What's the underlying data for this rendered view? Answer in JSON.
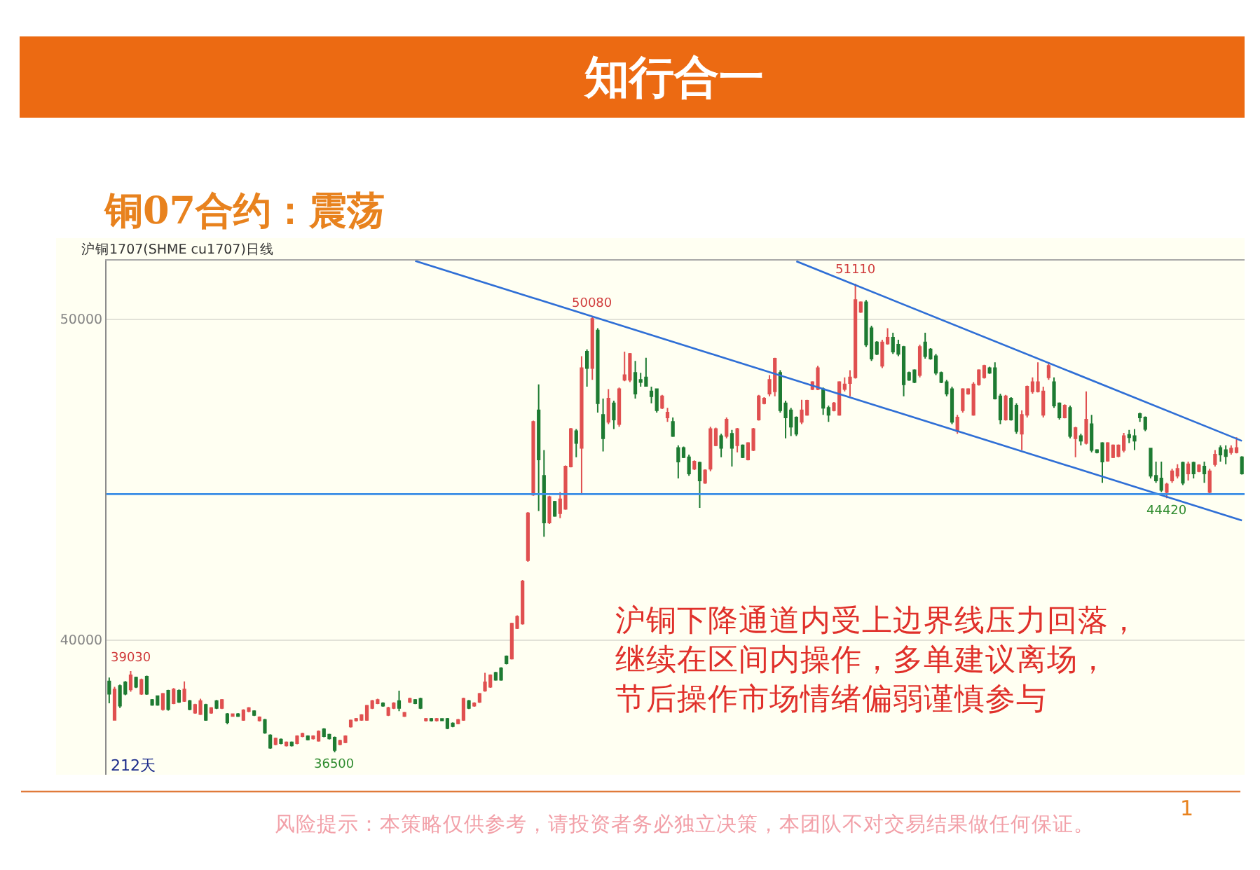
{
  "chart_data": {
    "type": "candlestick",
    "title": "铜07合约：震荡",
    "subtitle": "沪铜1707(SHME cu1707)日线",
    "categories": [
      null,
      null,
      null,
      null,
      null,
      null,
      null,
      null,
      null,
      null,
      null,
      null,
      null,
      null,
      null,
      null,
      null,
      null,
      null,
      null,
      null,
      null,
      null,
      null,
      null,
      null,
      null,
      null,
      null,
      null,
      null,
      null,
      null,
      null,
      null,
      null,
      null,
      null,
      null,
      null,
      null,
      null,
      null,
      null,
      null,
      null,
      null,
      null,
      null,
      null,
      null,
      null,
      null,
      null,
      null,
      null,
      null,
      null,
      null,
      null,
      null,
      null,
      null,
      null,
      null,
      null,
      null,
      null,
      null,
      null,
      null,
      null,
      null,
      null,
      null,
      null,
      null,
      null,
      null,
      null,
      null,
      null,
      null,
      null,
      null,
      null,
      null,
      null,
      null,
      null,
      null,
      null,
      null,
      null,
      null,
      null,
      null,
      null,
      null,
      null,
      null,
      null,
      null,
      null,
      null,
      null,
      null,
      null,
      null,
      null,
      null,
      null,
      null,
      null,
      null,
      null,
      null,
      null,
      null,
      null,
      null,
      null,
      null,
      null,
      null,
      null,
      null,
      null,
      null,
      null,
      null,
      null,
      null,
      null,
      null,
      null,
      null,
      null,
      null,
      null,
      null,
      null,
      null,
      null,
      null,
      null,
      null,
      null,
      null,
      null,
      null,
      null,
      null,
      null,
      null,
      null,
      null,
      null,
      null,
      null,
      null,
      null,
      null,
      null,
      null,
      null,
      null,
      null,
      null,
      null,
      null,
      null,
      null,
      null,
      null,
      null,
      null,
      null,
      null,
      null,
      null,
      null,
      null,
      null,
      null,
      null,
      null,
      null,
      null,
      null,
      null,
      null,
      null,
      null,
      null,
      null,
      null,
      null,
      null,
      null,
      null,
      null,
      null,
      null,
      null,
      null,
      null,
      null,
      null,
      null,
      null,
      null
    ],
    "ohlc": [
      [
        38710,
        38830,
        38030,
        38320
      ],
      [
        37510,
        38540,
        37500,
        38460
      ],
      [
        38570,
        38610,
        37880,
        37950
      ],
      [
        38680,
        38720,
        38280,
        38320
      ],
      [
        38460,
        39030,
        38390,
        38900
      ],
      [
        38830,
        38860,
        38500,
        38540
      ],
      [
        38320,
        38800,
        38290,
        38760
      ],
      [
        38860,
        38890,
        38290,
        38320
      ],
      [
        38130,
        38160,
        37950,
        37980
      ],
      [
        38250,
        38270,
        37950,
        37980
      ],
      [
        37840,
        38350,
        37800,
        38320
      ],
      [
        38420,
        38450,
        37800,
        37840
      ],
      [
        38030,
        38500,
        38000,
        38460
      ],
      [
        38420,
        38460,
        38040,
        38070
      ],
      [
        38100,
        38710,
        38070,
        38460
      ],
      [
        38100,
        38130,
        37810,
        37840
      ],
      [
        37730,
        38010,
        37700,
        37980
      ],
      [
        37690,
        38170,
        37660,
        38100
      ],
      [
        37980,
        38010,
        37480,
        37510
      ],
      [
        37730,
        37910,
        37700,
        37880
      ],
      [
        38100,
        38130,
        37850,
        37880
      ],
      [
        37880,
        38160,
        37850,
        38130
      ],
      [
        37690,
        37720,
        37370,
        37440
      ],
      [
        37630,
        37710,
        37610,
        37690
      ],
      [
        37690,
        37720,
        37600,
        37630
      ],
      [
        37510,
        37840,
        37480,
        37810
      ],
      [
        37780,
        37910,
        37750,
        37880
      ],
      [
        37780,
        37810,
        37630,
        37660
      ],
      [
        37490,
        37620,
        37460,
        37590
      ],
      [
        37510,
        37540,
        37080,
        37110
      ],
      [
        37030,
        37060,
        36610,
        36640
      ],
      [
        36750,
        36960,
        36720,
        36930
      ],
      [
        36900,
        36930,
        36750,
        36780
      ],
      [
        36710,
        36840,
        36680,
        36810
      ],
      [
        36810,
        36840,
        36680,
        36710
      ],
      [
        36780,
        37030,
        36750,
        37000
      ],
      [
        37000,
        37110,
        36970,
        37080
      ],
      [
        37000,
        37030,
        36870,
        36900
      ],
      [
        36930,
        37030,
        36900,
        37000
      ],
      [
        36860,
        37180,
        36830,
        37150
      ],
      [
        37220,
        37250,
        36970,
        37000
      ],
      [
        37050,
        37080,
        36900,
        36930
      ],
      [
        36960,
        36990,
        36500,
        36570
      ],
      [
        36750,
        36890,
        36720,
        36860
      ],
      [
        36810,
        37030,
        36780,
        37000
      ],
      [
        37300,
        37520,
        37270,
        37490
      ],
      [
        37490,
        37570,
        37460,
        37540
      ],
      [
        37510,
        37690,
        37480,
        37660
      ],
      [
        37510,
        37980,
        37480,
        37950
      ],
      [
        37880,
        38130,
        37850,
        38100
      ],
      [
        38030,
        38170,
        38000,
        38130
      ],
      [
        38030,
        38060,
        37920,
        37950
      ],
      [
        37660,
        37920,
        37630,
        37880
      ],
      [
        37880,
        38060,
        37850,
        38030
      ],
      [
        38100,
        38420,
        37780,
        37880
      ],
      [
        37630,
        37760,
        37600,
        37730
      ],
      [
        38070,
        38200,
        38040,
        38170
      ],
      [
        38130,
        38160,
        38000,
        38030
      ],
      [
        38170,
        38200,
        37850,
        37880
      ],
      [
        37490,
        37570,
        37460,
        37540
      ],
      [
        37540,
        37570,
        37460,
        37490
      ],
      [
        37490,
        37570,
        37460,
        37540
      ],
      [
        37540,
        37560,
        37470,
        37490
      ],
      [
        37540,
        37570,
        37220,
        37250
      ],
      [
        37400,
        37430,
        37280,
        37310
      ],
      [
        37400,
        37540,
        37370,
        37510
      ],
      [
        37510,
        38200,
        37480,
        38170
      ],
      [
        38100,
        38130,
        37850,
        37880
      ],
      [
        37950,
        38060,
        37920,
        38030
      ],
      [
        38070,
        38350,
        38040,
        38320
      ],
      [
        38420,
        38980,
        38390,
        38680
      ],
      [
        38540,
        38930,
        38510,
        38900
      ],
      [
        38980,
        39010,
        38730,
        38760
      ],
      [
        39120,
        39150,
        38730,
        38760
      ],
      [
        39490,
        39520,
        39240,
        39270
      ],
      [
        39420,
        40540,
        39390,
        40510
      ],
      [
        40370,
        40770,
        40340,
        40730
      ],
      [
        40510,
        41870,
        40480,
        41830
      ],
      [
        42490,
        43990,
        42440,
        43950
      ],
      [
        44530,
        46840,
        44500,
        46800
      ],
      [
        47160,
        47970,
        44020,
        45630
      ],
      [
        45120,
        45920,
        43220,
        43660
      ],
      [
        43660,
        44500,
        43620,
        44460
      ],
      [
        44310,
        44340,
        43840,
        43870
      ],
      [
        43950,
        44610,
        43800,
        44390
      ],
      [
        44090,
        45440,
        44060,
        45410
      ],
      [
        45410,
        46610,
        45380,
        46580
      ],
      [
        46510,
        46580,
        45700,
        46140
      ],
      [
        45990,
        48850,
        44530,
        48480
      ],
      [
        48990,
        49060,
        47900,
        48480
      ],
      [
        48480,
        50080,
        48110,
        50010
      ],
      [
        49650,
        49720,
        47090,
        47380
      ],
      [
        47020,
        47530,
        45880,
        46290
      ],
      [
        46800,
        47820,
        46730,
        47530
      ],
      [
        47380,
        47460,
        46580,
        46870
      ],
      [
        46730,
        47870,
        46650,
        47820
      ],
      [
        48110,
        48990,
        48070,
        48260
      ],
      [
        48110,
        48950,
        48040,
        48920
      ],
      [
        48330,
        48700,
        47530,
        47680
      ],
      [
        48110,
        48330,
        47900,
        48040
      ],
      [
        48190,
        48800,
        47900,
        47920
      ],
      [
        47750,
        47900,
        47380,
        47600
      ],
      [
        47820,
        47840,
        47090,
        47160
      ],
      [
        47240,
        47640,
        47200,
        47600
      ],
      [
        46940,
        47240,
        46800,
        47090
      ],
      [
        46800,
        46940,
        46330,
        46360
      ],
      [
        45990,
        46070,
        45040,
        45560
      ],
      [
        45990,
        46030,
        45670,
        45700
      ],
      [
        45700,
        45780,
        45120,
        45190
      ],
      [
        45340,
        45600,
        45300,
        45560
      ],
      [
        45530,
        45560,
        44120,
        44970
      ],
      [
        44900,
        45320,
        44870,
        45290
      ],
      [
        45340,
        46650,
        45260,
        46580
      ],
      [
        46070,
        46620,
        46040,
        46580
      ],
      [
        46360,
        46430,
        45700,
        45990
      ],
      [
        46360,
        46940,
        46290,
        46870
      ],
      [
        46430,
        46550,
        45410,
        45990
      ],
      [
        46070,
        46610,
        45850,
        46580
      ],
      [
        46070,
        46100,
        45670,
        45700
      ],
      [
        45630,
        46170,
        45600,
        46140
      ],
      [
        45920,
        46610,
        45890,
        46580
      ],
      [
        46870,
        47640,
        46840,
        47600
      ],
      [
        47380,
        47570,
        47350,
        47530
      ],
      [
        47680,
        48260,
        47600,
        48110
      ],
      [
        47750,
        48800,
        47600,
        48770
      ],
      [
        48330,
        48410,
        47090,
        47160
      ],
      [
        47380,
        47460,
        46290,
        46940
      ],
      [
        47160,
        47240,
        46360,
        46650
      ],
      [
        46940,
        46970,
        46360,
        46430
      ],
      [
        46800,
        47490,
        46730,
        47160
      ],
      [
        47020,
        47490,
        46990,
        47460
      ],
      [
        47820,
        48070,
        47790,
        48040
      ],
      [
        47820,
        48550,
        47790,
        48480
      ],
      [
        47820,
        47870,
        47020,
        47240
      ],
      [
        47240,
        47310,
        46800,
        47020
      ],
      [
        47160,
        47420,
        47130,
        47380
      ],
      [
        47020,
        48070,
        46990,
        48040
      ],
      [
        47820,
        48190,
        47750,
        47970
      ],
      [
        48010,
        48410,
        47600,
        48190
      ],
      [
        48190,
        51110,
        48150,
        50600
      ],
      [
        50230,
        50560,
        50200,
        50530
      ],
      [
        50530,
        50600,
        49140,
        49210
      ],
      [
        49720,
        49800,
        48700,
        48770
      ],
      [
        49280,
        49320,
        48880,
        48920
      ],
      [
        48550,
        49360,
        48480,
        49280
      ],
      [
        49240,
        49720,
        49210,
        49430
      ],
      [
        49430,
        49580,
        48920,
        48990
      ],
      [
        49210,
        49360,
        48850,
        48920
      ],
      [
        49140,
        49170,
        47600,
        47970
      ],
      [
        48330,
        48370,
        48080,
        48110
      ],
      [
        48410,
        48440,
        48010,
        48040
      ],
      [
        48260,
        49210,
        48190,
        49140
      ],
      [
        49280,
        49580,
        48770,
        48850
      ],
      [
        49060,
        49100,
        48740,
        48770
      ],
      [
        48850,
        48920,
        48260,
        48330
      ],
      [
        48330,
        48370,
        48010,
        48040
      ],
      [
        48040,
        48110,
        47600,
        47680
      ],
      [
        47820,
        47900,
        46730,
        46800
      ],
      [
        46510,
        47020,
        46430,
        46940
      ],
      [
        47160,
        47850,
        47090,
        47820
      ],
      [
        47680,
        47850,
        47650,
        47820
      ],
      [
        47020,
        48040,
        46990,
        47970
      ],
      [
        47970,
        48440,
        47930,
        48410
      ],
      [
        48190,
        48580,
        48150,
        48550
      ],
      [
        48480,
        48520,
        48300,
        48330
      ],
      [
        48480,
        48660,
        47500,
        47530
      ],
      [
        47600,
        47680,
        46730,
        46870
      ],
      [
        46870,
        47640,
        46840,
        47600
      ],
      [
        47530,
        47570,
        46840,
        46870
      ],
      [
        47310,
        47380,
        46430,
        46510
      ],
      [
        46430,
        47160,
        45920,
        47020
      ],
      [
        47020,
        47930,
        46940,
        47900
      ],
      [
        47750,
        48190,
        47680,
        48040
      ],
      [
        47750,
        48660,
        47720,
        48040
      ],
      [
        47020,
        47900,
        46940,
        47750
      ],
      [
        48190,
        48660,
        48110,
        48550
      ],
      [
        48040,
        48190,
        47240,
        47310
      ],
      [
        47380,
        47410,
        46870,
        46940
      ],
      [
        46940,
        47350,
        46910,
        47310
      ],
      [
        47240,
        47310,
        46290,
        46360
      ],
      [
        46290,
        46650,
        45700,
        46610
      ],
      [
        46360,
        46430,
        46070,
        46210
      ],
      [
        46140,
        47750,
        46100,
        46870
      ],
      [
        46730,
        47020,
        45850,
        45920
      ],
      [
        45920,
        45950,
        45820,
        45850
      ],
      [
        46140,
        46170,
        44900,
        45560
      ],
      [
        45590,
        46170,
        45560,
        46140
      ],
      [
        45700,
        46100,
        45670,
        46070
      ],
      [
        45730,
        46100,
        45700,
        46070
      ],
      [
        45920,
        46460,
        45850,
        46360
      ],
      [
        46400,
        46550,
        46140,
        46320
      ],
      [
        46360,
        46580,
        45920,
        46210
      ],
      [
        47050,
        47090,
        46800,
        46940
      ],
      [
        46940,
        46970,
        46510,
        46580
      ],
      [
        45970,
        45990,
        45040,
        45120
      ],
      [
        45120,
        45560,
        44900,
        44970
      ],
      [
        45040,
        45560,
        44610,
        44680
      ],
      [
        44610,
        44900,
        44420,
        44850
      ],
      [
        44970,
        45340,
        44900,
        45260
      ],
      [
        45120,
        45480,
        45040,
        45340
      ],
      [
        45530,
        45560,
        44830,
        44900
      ],
      [
        45190,
        45560,
        44970,
        45480
      ],
      [
        45530,
        45560,
        45040,
        45190
      ],
      [
        45260,
        45480,
        45230,
        45450
      ],
      [
        45410,
        45560,
        44900,
        45190
      ],
      [
        44610,
        45340,
        44530,
        45260
      ],
      [
        45480,
        45920,
        45410,
        45780
      ],
      [
        45990,
        46070,
        45560,
        45780
      ],
      [
        45920,
        46070,
        45480,
        45730
      ],
      [
        45850,
        46070,
        45780,
        45970
      ],
      [
        45850,
        46320,
        45820,
        45990
      ],
      [
        45700,
        45730,
        45160,
        45190
      ]
    ],
    "colors": [
      "#1e7b32",
      "#e05050",
      "#1e7b32",
      "#1e7b32",
      "#e05050",
      "#1e7b32",
      "#e05050",
      "#1e7b32",
      "#1e7b32",
      "#1e7b32",
      "#e05050",
      "#1e7b32",
      "#e05050",
      "#1e7b32",
      "#e05050",
      "#1e7b32",
      "#e05050",
      "#e05050",
      "#1e7b32",
      "#e05050",
      "#1e7b32",
      "#e05050",
      "#1e7b32",
      "#e05050",
      "#1e7b32",
      "#e05050",
      "#e05050",
      "#1e7b32",
      "#e05050",
      "#1e7b32",
      "#1e7b32",
      "#e05050",
      "#1e7b32",
      "#e05050",
      "#1e7b32",
      "#e05050",
      "#e05050",
      "#1e7b32",
      "#e05050",
      "#e05050",
      "#1e7b32",
      "#1e7b32",
      "#1e7b32",
      "#e05050",
      "#e05050",
      "#e05050",
      "#e05050",
      "#e05050",
      "#e05050",
      "#e05050",
      "#e05050",
      "#1e7b32",
      "#e05050",
      "#e05050",
      "#1e7b32",
      "#e05050",
      "#e05050",
      "#1e7b32",
      "#1e7b32",
      "#e05050",
      "#1e7b32",
      "#e05050",
      "#1e7b32",
      "#1e7b32",
      "#1e7b32",
      "#e05050",
      "#e05050",
      "#1e7b32",
      "#e05050",
      "#e05050",
      "#e05050",
      "#e05050",
      "#1e7b32",
      "#1e7b32",
      "#1e7b32",
      "#e05050",
      "#e05050",
      "#e05050",
      "#e05050",
      "#e05050",
      "#1e7b32",
      "#1e7b32",
      "#e05050",
      "#1e7b32",
      "#e05050",
      "#e05050",
      "#e05050",
      "#1e7b32",
      "#e05050",
      "#1e7b32",
      "#e05050",
      "#1e7b32",
      "#1e7b32",
      "#e05050",
      "#1e7b32",
      "#e05050",
      "#e05050",
      "#e05050",
      "#1e7b32",
      "#1e7b32",
      "#1e7b32",
      "#1e7b32",
      "#1e7b32",
      "#e05050",
      "#e05050",
      "#1e7b32",
      "#1e7b32",
      "#1e7b32",
      "#1e7b32",
      "#e05050",
      "#1e7b32",
      "#e05050",
      "#e05050",
      "#e05050",
      "#1e7b32",
      "#e05050",
      "#1e7b32",
      "#e05050",
      "#1e7b32",
      "#e05050",
      "#e05050",
      "#e05050",
      "#e05050",
      "#e05050",
      "#e05050",
      "#1e7b32",
      "#1e7b32",
      "#1e7b32",
      "#1e7b32",
      "#e05050",
      "#e05050",
      "#e05050",
      "#e05050",
      "#1e7b32",
      "#1e7b32",
      "#e05050",
      "#e05050",
      "#e05050",
      "#e05050",
      "#e05050",
      "#e05050",
      "#1e7b32",
      "#1e7b32",
      "#1e7b32",
      "#e05050",
      "#e05050",
      "#1e7b32",
      "#1e7b32",
      "#1e7b32",
      "#1e7b32",
      "#1e7b32",
      "#e05050",
      "#1e7b32",
      "#1e7b32",
      "#1e7b32",
      "#1e7b32",
      "#1e7b32",
      "#1e7b32",
      "#e05050",
      "#e05050",
      "#e05050",
      "#e05050",
      "#e05050",
      "#e05050",
      "#1e7b32",
      "#1e7b32",
      "#1e7b32",
      "#e05050",
      "#1e7b32",
      "#1e7b32",
      "#e05050",
      "#e05050",
      "#e05050",
      "#e05050",
      "#e05050",
      "#e05050",
      "#1e7b32",
      "#1e7b32",
      "#e05050",
      "#1e7b32",
      "#e05050",
      "#1e7b32",
      "#e05050",
      "#1e7b32",
      "#1e7b32",
      "#1e7b32",
      "#e05050",
      "#e05050",
      "#e05050",
      "#e05050",
      "#1e7b32",
      "#1e7b32",
      "#1e7b32",
      "#1e7b32",
      "#1e7b32",
      "#1e7b32",
      "#1e7b32",
      "#e05050",
      "#e05050",
      "#e05050",
      "#1e7b32",
      "#e05050",
      "#1e7b32",
      "#e05050",
      "#1e7b32",
      "#e05050",
      "#e05050",
      "#1e7b32",
      "#1e7b32",
      "#e05050",
      "#e05050",
      "#1e7b32"
    ],
    "series": [
      {
        "type": "line",
        "color": "#2f6fd6",
        "values": [
          null,
          null,
          null,
          null,
          null,
          null,
          null,
          null,
          null,
          null,
          null,
          null,
          null,
          null,
          null,
          null,
          null,
          null,
          null,
          null,
          null,
          null,
          null,
          null,
          null,
          null,
          null,
          null,
          null,
          null,
          null,
          null,
          null,
          null,
          null,
          null,
          null,
          null,
          null,
          null,
          null,
          null,
          null,
          null,
          null,
          null,
          null,
          null,
          null,
          null,
          null,
          null,
          null,
          null,
          null,
          null,
          null,
          51820,
          null,
          null,
          null,
          null,
          null,
          null,
          null,
          null,
          null,
          null,
          null,
          null,
          null,
          null,
          null,
          null,
          null,
          null,
          null,
          null,
          null,
          null,
          null,
          null,
          null,
          null,
          null,
          null,
          null,
          null,
          null,
          null,
          null,
          null,
          null,
          null,
          null,
          null,
          null,
          null,
          null,
          null,
          null,
          null,
          null,
          null,
          null,
          null,
          null,
          null,
          null,
          null,
          null,
          null,
          null,
          null,
          null,
          null,
          null,
          null,
          null,
          null,
          null,
          null,
          null,
          null,
          null,
          null,
          null,
          null,
          null,
          null,
          null,
          null,
          null,
          null,
          null,
          null,
          null,
          null,
          null,
          null,
          null,
          null,
          null,
          null,
          null,
          null,
          null,
          null,
          null,
          null,
          null,
          null,
          null,
          null,
          null,
          null,
          null,
          null,
          null,
          null,
          null,
          null,
          null,
          null,
          null,
          null,
          null,
          null,
          null,
          null,
          null,
          null,
          null,
          null,
          null,
          null,
          null,
          null,
          null,
          null,
          null,
          null,
          null,
          null,
          null,
          null,
          null,
          null,
          null,
          null,
          null,
          null,
          null,
          null,
          null,
          null,
          null,
          null,
          null,
          null,
          null,
          null,
          null,
          null,
          null,
          null,
          null,
          null,
          null,
          null,
          null,
          43730
        ]
      },
      {
        "type": "line",
        "color": "#2f6fd6",
        "values": [
          null,
          null,
          null,
          null,
          null,
          null,
          null,
          null,
          null,
          null,
          null,
          null,
          null,
          null,
          null,
          null,
          null,
          null,
          null,
          null,
          null,
          null,
          null,
          null,
          null,
          null,
          null,
          null,
          null,
          null,
          null,
          null,
          null,
          null,
          null,
          null,
          null,
          null,
          null,
          null,
          null,
          null,
          null,
          null,
          null,
          null,
          null,
          null,
          null,
          null,
          null,
          null,
          null,
          null,
          null,
          null,
          null,
          null,
          null,
          null,
          null,
          null,
          null,
          null,
          null,
          null,
          null,
          null,
          null,
          null,
          null,
          null,
          null,
          null,
          null,
          null,
          null,
          null,
          null,
          null,
          null,
          null,
          null,
          null,
          null,
          null,
          null,
          null,
          null,
          null,
          null,
          null,
          null,
          null,
          null,
          null,
          null,
          null,
          null,
          null,
          null,
          null,
          null,
          null,
          null,
          null,
          null,
          null,
          null,
          null,
          null,
          null,
          null,
          null,
          null,
          null,
          null,
          null,
          null,
          null,
          null,
          null,
          null,
          null,
          null,
          null,
          null,
          null,
          51810,
          null,
          null,
          null,
          null,
          null,
          null,
          null,
          null,
          null,
          null,
          null,
          null,
          null,
          null,
          null,
          null,
          null,
          null,
          null,
          null,
          null,
          null,
          null,
          null,
          null,
          null,
          null,
          null,
          null,
          null,
          null,
          null,
          null,
          null,
          null,
          null,
          null,
          null,
          null,
          null,
          null,
          null,
          null,
          null,
          null,
          null,
          null,
          null,
          null,
          null,
          null,
          null,
          null,
          null,
          null,
          null,
          null,
          null,
          null,
          null,
          null,
          null,
          null,
          null,
          null,
          null,
          null,
          null,
          null,
          null,
          null,
          null,
          null,
          null,
          null,
          null,
          null,
          null,
          null,
          null,
          null,
          null,
          46210
        ]
      }
    ],
    "ref_lines": [
      {
        "axis": "y",
        "value": 44550,
        "color": "#3a8ee6"
      }
    ],
    "ylim": [
      35800,
      51830
    ],
    "yticks": [
      40000,
      50000
    ],
    "grid": "y",
    "tick_labels": "y",
    "annotations": [
      "知行合一",
      "沪铜下降通道内受上边界线压力回落，继续在区间内操作，多单建议离场，节后操作市场情绪偏弱谨慎参与",
      "212天",
      "风险提示：本策略仅供参考，请投资者务必独立决策，本团队不对交易结果做任何保证。",
      "1",
      {
        "text": "39030",
        "y": 39030
      },
      {
        "text": "50080",
        "y": 50080
      },
      {
        "text": "51110",
        "y": 51110
      },
      {
        "text": "44420",
        "y": 44420
      },
      {
        "text": "36500",
        "y": 36500
      }
    ]
  }
}
